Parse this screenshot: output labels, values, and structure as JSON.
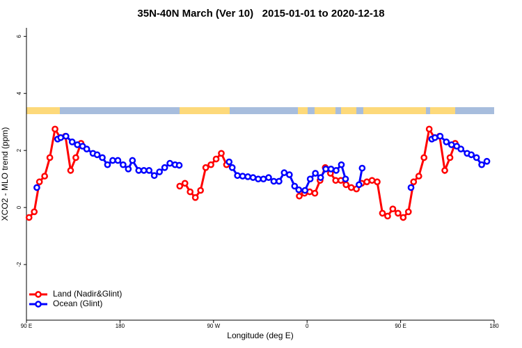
{
  "chart_data": {
    "type": "line",
    "title": "35N-40N March (Ver 10)   2015-01-01 to 2020-12-18",
    "x_label": "Longitude (deg E)",
    "y_label": "XCO2 - MLO trend (ppm)",
    "xlim": [
      90,
      540
    ],
    "xticks": [
      {
        "value": 90,
        "label": "90 E"
      },
      {
        "value": 180,
        "label": "180"
      },
      {
        "value": 270,
        "label": "90 W"
      },
      {
        "value": 360,
        "label": "0"
      },
      {
        "value": 450,
        "label": "90 E"
      },
      {
        "value": 540,
        "label": "180"
      }
    ],
    "ylim": [
      -3.95,
      6.3
    ],
    "yticks": [
      -2,
      0,
      2,
      4,
      6
    ],
    "legend": "bottom-left",
    "series": [
      {
        "name": "Land (Nadir&Glint)",
        "color": "#ff0000",
        "x": [
          92.5,
          97.5,
          102.5,
          107.5,
          112.5,
          117.5,
          122.5,
          127.5,
          132.5,
          137.5,
          142.5,
          187.5,
          237.5,
          242.5,
          247.5,
          252.5,
          257.5,
          262.5,
          267.5,
          272.5,
          277.5,
          282.5,
          317.5,
          352.5,
          357.5,
          362.5,
          367.5,
          372.5,
          377.5,
          382.5,
          387.5,
          392.5,
          397.5,
          402.5,
          407.5,
          412.5,
          417.5,
          422.5,
          427.5,
          432.5,
          437.5,
          442.5,
          447.5,
          452.5,
          457.5,
          462.5,
          467.5,
          472.5,
          477.5,
          482.5,
          487.5,
          492.5,
          497.5,
          502.5
        ],
        "values": [
          -0.35,
          -0.15,
          0.9,
          1.1,
          1.75,
          2.75,
          2.45,
          2.5,
          1.3,
          1.75,
          2.25,
          null,
          0.75,
          0.85,
          0.55,
          0.35,
          0.6,
          1.4,
          1.5,
          1.7,
          1.9,
          1.5,
          null,
          0.4,
          0.5,
          0.55,
          0.5,
          0.95,
          1.4,
          1.2,
          0.95,
          0.95,
          0.8,
          0.7,
          0.65,
          0.85,
          0.9,
          0.95,
          0.9,
          -0.2,
          -0.3,
          -0.05,
          -0.2,
          -0.35,
          -0.15,
          0.9,
          1.1,
          1.75,
          2.75,
          2.45,
          2.5,
          1.3,
          1.75,
          2.25
        ]
      },
      {
        "name": "Ocean (Glint)",
        "color": "#0000ff",
        "x": [
          100,
          110,
          120,
          123,
          128,
          134,
          139,
          144,
          148,
          154,
          158,
          163,
          168,
          173,
          178,
          183,
          188,
          192,
          198,
          203,
          208,
          213,
          218,
          223,
          228,
          233,
          237,
          260,
          285,
          288,
          293,
          298,
          303,
          308,
          313,
          318,
          323,
          328,
          333,
          338,
          343,
          348,
          352,
          358,
          363,
          368,
          373,
          378,
          383,
          388,
          393,
          397,
          403,
          410,
          413,
          440,
          460,
          470,
          480,
          483,
          488,
          494,
          499,
          504,
          508,
          514,
          518,
          523,
          528,
          533
        ],
        "values": [
          0.7,
          null,
          2.4,
          2.45,
          2.5,
          2.3,
          2.2,
          2.15,
          2.05,
          1.9,
          1.85,
          1.75,
          1.5,
          1.65,
          1.65,
          1.5,
          1.35,
          1.65,
          1.3,
          1.3,
          1.3,
          1.12,
          1.25,
          1.4,
          1.55,
          1.5,
          1.48,
          null,
          1.6,
          1.4,
          1.12,
          1.1,
          1.08,
          1.05,
          1.0,
          1.0,
          1.05,
          0.92,
          0.92,
          1.22,
          1.15,
          0.75,
          0.62,
          0.6,
          1.0,
          1.2,
          1.05,
          1.35,
          1.35,
          1.3,
          1.5,
          1.0,
          null,
          0.8,
          1.38,
          null,
          0.7,
          null,
          2.4,
          2.45,
          2.5,
          2.3,
          2.2,
          2.15,
          2.05,
          1.9,
          1.85,
          1.75,
          1.5,
          1.62
        ]
      }
    ]
  }
}
